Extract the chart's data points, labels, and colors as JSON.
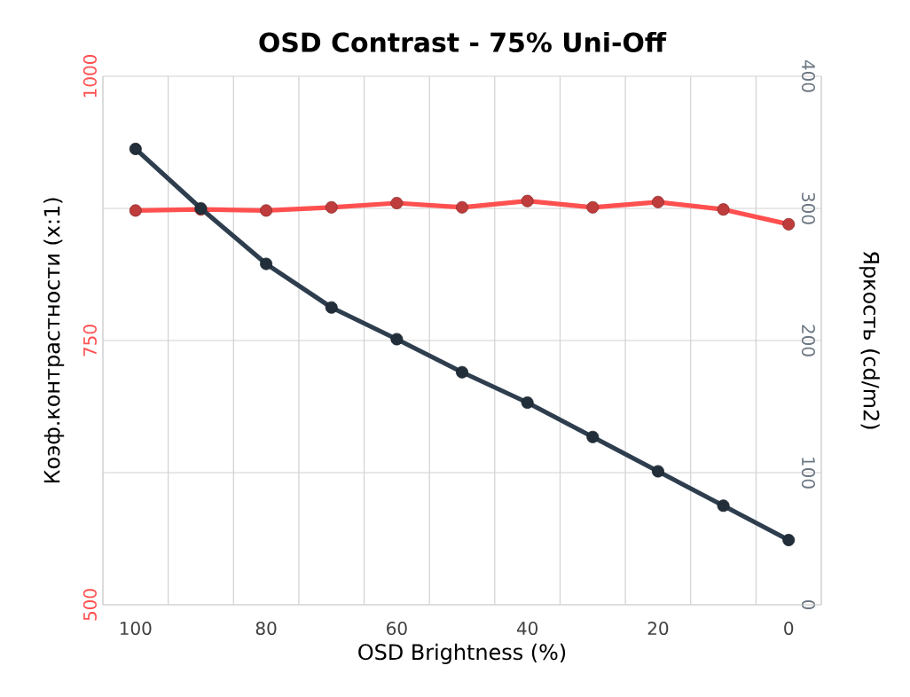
{
  "chart_data": {
    "type": "line",
    "title": "OSD Contrast - 75% Uni-Off",
    "xlabel": "OSD Brightness (%)",
    "ylabel": "Коэф.контрастности (x:1)",
    "y2label": "Яркость (cd/m2)",
    "categories": [
      "100",
      null,
      "80",
      null,
      "60",
      null,
      "40",
      null,
      "20",
      null,
      "0"
    ],
    "series": [
      {
        "color": "#ff5050",
        "values": [
          873,
          874,
          873,
          876,
          880,
          876,
          882,
          876,
          881,
          874,
          860
        ]
      },
      {
        "color": "#2e3e4e",
        "axis": "y2",
        "values": [
          345,
          300,
          258,
          225,
          201,
          176,
          153,
          127,
          101,
          75,
          49
        ]
      }
    ],
    "ylim": [
      500,
      1000
    ],
    "yticks": [
      500,
      750,
      1000
    ],
    "y2lim": [
      0,
      400
    ],
    "y2ticks": [
      0,
      100,
      200,
      300,
      400
    ],
    "grid": true,
    "marker": "circle",
    "line_style": "solid"
  }
}
